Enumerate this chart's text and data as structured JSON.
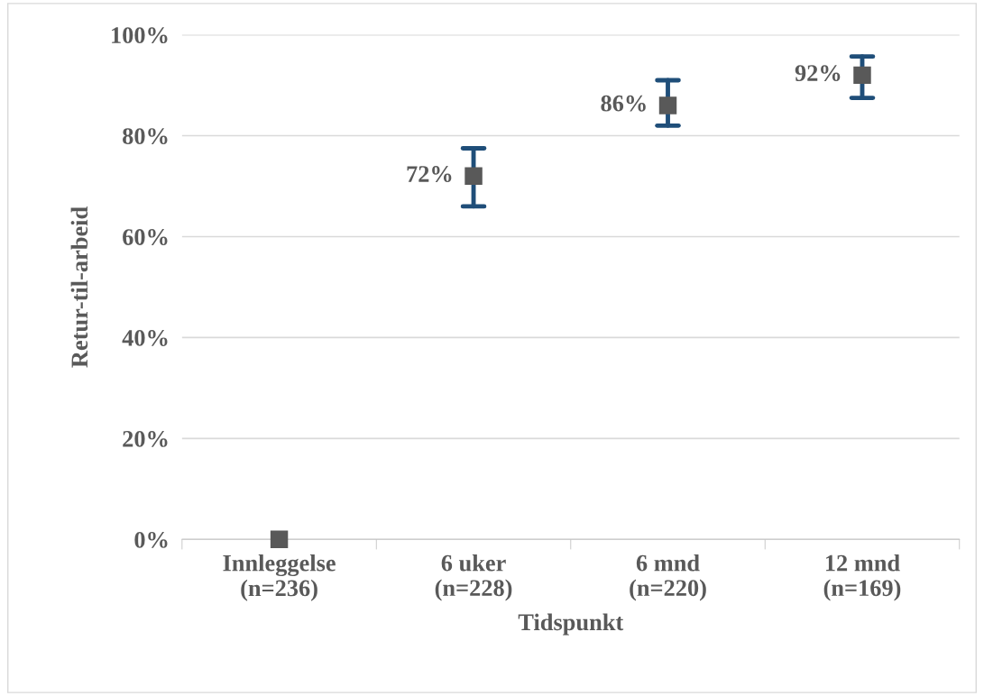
{
  "chart_data": {
    "type": "scatter",
    "xlabel": "Tidspunkt",
    "ylabel": "Retur-til-arbeid",
    "categories": [
      "Innleggelse\n(n=236)",
      "6 uker\n(n=228)",
      "6 mnd\n(n=220)",
      "12 mnd\n(n=169)"
    ],
    "series": [
      {
        "color": "#595959",
        "values": [
          0,
          72,
          86,
          92
        ],
        "errors": [
          null,
          [
            66,
            77.5
          ],
          [
            82,
            91
          ],
          [
            87.5,
            95.7
          ]
        ],
        "value_labels": [
          null,
          "72%",
          "86%",
          "92%"
        ]
      }
    ],
    "ylim": [
      0,
      100
    ],
    "yticks": [
      {
        "value": 0,
        "label": "0%"
      },
      {
        "value": 20,
        "label": "20%"
      },
      {
        "value": 40,
        "label": "40%"
      },
      {
        "value": 60,
        "label": "60%"
      },
      {
        "value": 80,
        "label": "80%"
      },
      {
        "value": 100,
        "label": "100%"
      }
    ],
    "grid": "y",
    "marker": "square",
    "legend": false
  }
}
